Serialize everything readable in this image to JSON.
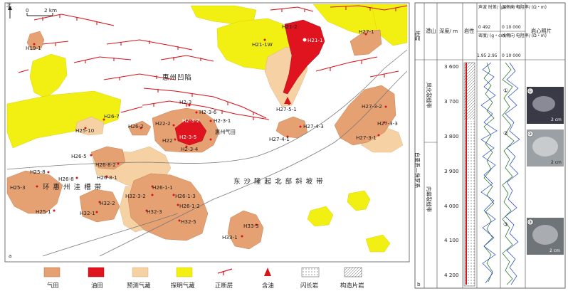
{
  "map": {
    "north_label": "北",
    "scale_start": "0",
    "scale_end": "2 km",
    "panel_label": "a",
    "regions": {
      "sag": "惠州凹陷",
      "trough": "环 惠 州 洼 槽 带",
      "slope": "东 沙 隆 起 北 部 斜 坡 带"
    },
    "wells": [
      {
        "name": "H19-1"
      },
      {
        "name": "H21-1W"
      },
      {
        "name": "H21-2"
      },
      {
        "name": "H21-1"
      },
      {
        "name": "H27-1"
      },
      {
        "name": "H27-5-1"
      },
      {
        "name": "H26-7"
      },
      {
        "name": "H25-10"
      },
      {
        "name": "H26-2"
      },
      {
        "name": "H22-2"
      },
      {
        "name": "H2-3"
      },
      {
        "name": "H2-3-6"
      },
      {
        "name": "H2-3-1"
      },
      {
        "name": "H2-3-2"
      },
      {
        "name": "H2-3-5"
      },
      {
        "name": "H2-3-4"
      },
      {
        "name": "H22"
      },
      {
        "name": "惠州气田"
      },
      {
        "name": "H27-3-2"
      },
      {
        "name": "H27-3-3"
      },
      {
        "name": "H27-3-1"
      },
      {
        "name": "H27-4-3"
      },
      {
        "name": "H27-4-1"
      },
      {
        "name": "H26-5"
      },
      {
        "name": "H26-8-2"
      },
      {
        "name": "H26-8"
      },
      {
        "name": "H26-8-1"
      },
      {
        "name": "H25-8"
      },
      {
        "name": "H25-3"
      },
      {
        "name": "H25-1"
      },
      {
        "name": "H26-1-1"
      },
      {
        "name": "H32-3-2"
      },
      {
        "name": "H26-1-3"
      },
      {
        "name": "H32-2"
      },
      {
        "name": "H26-1-2"
      },
      {
        "name": "H32-1"
      },
      {
        "name": "H32-3"
      },
      {
        "name": "H32-5"
      },
      {
        "name": "H33-3"
      },
      {
        "name": "H33-1"
      }
    ]
  },
  "log": {
    "panel_label": "b",
    "headers": {
      "formation": "地层",
      "sub": "潜山",
      "depth": "深度/ m",
      "lith": "岩性",
      "sonic": "声波 时差/ (μs・m⁻¹)",
      "sonic_range": "0    492",
      "density": "密度/ (g・cm⁻³)",
      "density_range": "1.95 2.95",
      "deep_res": "深侧向 电阻率/ (Ω・m)",
      "deep_range": "0    10 000",
      "shallow_res": "浅侧向 电阻率/ (Ω・m)",
      "shallow_range": "0    10 000",
      "photo": "岩心照片"
    },
    "formation": "白垩系—侏罗系",
    "zones": [
      {
        "name": "风化裂缝带"
      },
      {
        "name": "内幕裂缝带"
      }
    ],
    "depths": [
      "3 600",
      "3 700",
      "3 800",
      "3 900",
      "4 000",
      "4 100",
      "4 200"
    ],
    "photos": [
      {
        "marker": "①",
        "scale": "2 cm"
      },
      {
        "marker": "②",
        "scale": "2 cm"
      },
      {
        "marker": "③",
        "scale": "2 cm"
      }
    ]
  },
  "legend": [
    {
      "label": "气田",
      "color": "#e6a173"
    },
    {
      "label": "油田",
      "color": "#e0141f"
    },
    {
      "label": "预测气藏",
      "color": "#f6d1a3"
    },
    {
      "label": "探明气藏",
      "color": "#f2ef12"
    },
    {
      "label": "正断层",
      "color": "#d8141b"
    },
    {
      "label": "含油",
      "color": "#d8141b"
    },
    {
      "label": "闪长岩",
      "color": "#ffffff"
    },
    {
      "label": "构造片岩",
      "color": "#ffffff"
    }
  ]
}
